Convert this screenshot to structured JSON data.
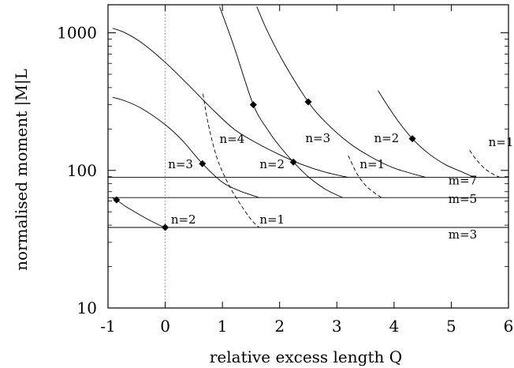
{
  "chart_data": {
    "type": "line",
    "title": "",
    "xlabel": "relative excess length Q",
    "ylabel": "normalised moment |M|L",
    "xlim": [
      -1,
      6
    ],
    "ylim": [
      10,
      1600
    ],
    "yscale": "log",
    "grid": false,
    "xticks": [
      -1,
      0,
      1,
      2,
      3,
      4,
      5,
      6
    ],
    "xtick_labels": [
      "-1",
      "0",
      "1",
      "2",
      "3",
      "4",
      "5",
      "6"
    ],
    "yticks": [
      10,
      100,
      1000
    ],
    "ytick_labels": [
      "10",
      "100",
      "1000"
    ],
    "reference_line": {
      "x": 0,
      "style": "dotted"
    },
    "series": [
      {
        "name": "m=3",
        "style": "solid",
        "x": [
          -1,
          6
        ],
        "y": [
          38.5,
          38.5
        ]
      },
      {
        "name": "m=5",
        "style": "solid",
        "x": [
          -1,
          6
        ],
        "y": [
          63.5,
          63.5
        ]
      },
      {
        "name": "m=7",
        "style": "solid",
        "x": [
          -1,
          6
        ],
        "y": [
          89,
          89
        ]
      },
      {
        "name": "n=2",
        "style": "solid",
        "x": [
          -0.92,
          -0.85,
          -0.7,
          -0.5,
          -0.3,
          -0.1,
          0.0
        ],
        "y": [
          63,
          61,
          55,
          49,
          44,
          40,
          38.5
        ]
      },
      {
        "name": "n=3",
        "style": "solid",
        "x": [
          -0.92,
          -0.7,
          -0.4,
          0.0,
          0.3,
          0.65,
          1.0,
          1.3,
          1.64
        ],
        "y": [
          340,
          320,
          280,
          215,
          165,
          112,
          82,
          71,
          63.5
        ]
      },
      {
        "name": "n=4",
        "style": "solid",
        "x": [
          -0.92,
          -0.7,
          -0.4,
          0.0,
          0.4,
          0.8,
          1.2,
          1.6,
          2.0,
          2.4,
          2.8,
          3.2
        ],
        "y": [
          1080,
          1000,
          840,
          610,
          420,
          285,
          200,
          158,
          130,
          110,
          97,
          89
        ]
      },
      {
        "name": "n=1",
        "style": "dashed",
        "x": [
          0.66,
          0.75,
          0.9,
          1.1,
          1.3,
          1.5,
          1.64
        ],
        "y": [
          360,
          220,
          125,
          80,
          58,
          44,
          38.5
        ]
      },
      {
        "name": "n=2",
        "style": "solid",
        "x": [
          0.95,
          1.2,
          1.54,
          1.8,
          2.0,
          2.24,
          2.5,
          2.8,
          3.1
        ],
        "y": [
          1550,
          800,
          300,
          195,
          150,
          115,
          90,
          73,
          63.5
        ]
      },
      {
        "name": "n=3",
        "style": "solid",
        "x": [
          1.6,
          1.8,
          2.1,
          2.5,
          2.8,
          3.2,
          3.6,
          4.0,
          4.55
        ],
        "y": [
          1550,
          1000,
          580,
          315,
          225,
          160,
          125,
          104,
          89
        ]
      },
      {
        "name": "n=1",
        "style": "dashed",
        "x": [
          3.2,
          3.35,
          3.5,
          3.65,
          3.78
        ],
        "y": [
          128,
          95,
          78,
          69,
          63.5
        ]
      },
      {
        "name": "n=2",
        "style": "solid",
        "x": [
          3.72,
          3.9,
          4.1,
          4.32,
          4.6,
          4.9,
          5.2,
          5.4
        ],
        "y": [
          380,
          290,
          220,
          170,
          133,
          110,
          97,
          89
        ]
      },
      {
        "name": "n=1",
        "style": "dashed",
        "x": [
          5.32,
          5.45,
          5.6,
          5.75,
          5.85
        ],
        "y": [
          140,
          118,
          102,
          93,
          89
        ]
      }
    ],
    "markers": [
      {
        "x": -0.85,
        "y": 61
      },
      {
        "x": 0.0,
        "y": 38.5
      },
      {
        "x": 0.65,
        "y": 112
      },
      {
        "x": 1.54,
        "y": 300
      },
      {
        "x": 2.24,
        "y": 115
      },
      {
        "x": 2.5,
        "y": 315
      },
      {
        "x": 4.32,
        "y": 170
      }
    ],
    "curve_labels": [
      {
        "text": "n=4",
        "x": 0.95,
        "y": 158
      },
      {
        "text": "n=3",
        "x": 0.05,
        "y": 104
      },
      {
        "text": "n=2",
        "x": 0.1,
        "y": 41
      },
      {
        "text": "n=1",
        "x": 1.65,
        "y": 41
      },
      {
        "text": "n=2",
        "x": 1.65,
        "y": 104
      },
      {
        "text": "n=3",
        "x": 2.45,
        "y": 160
      },
      {
        "text": "n=1",
        "x": 3.4,
        "y": 104
      },
      {
        "text": "n=2",
        "x": 3.65,
        "y": 160
      },
      {
        "text": "n=1",
        "x": 5.65,
        "y": 150
      },
      {
        "text": "m=7",
        "x": 4.95,
        "y": 79
      },
      {
        "text": "m=5",
        "x": 4.95,
        "y": 58
      },
      {
        "text": "m=3",
        "x": 4.95,
        "y": 32
      }
    ]
  }
}
